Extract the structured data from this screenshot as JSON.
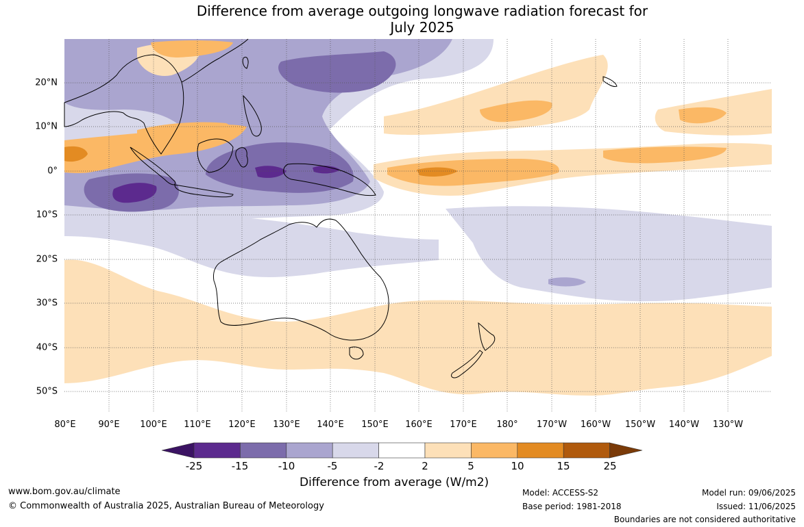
{
  "title": {
    "line1": "Difference from average outgoing longwave radiation forecast for",
    "line2": "July 2025"
  },
  "map": {
    "lon_labels": [
      "80°E",
      "90°E",
      "100°E",
      "110°E",
      "120°E",
      "130°E",
      "140°E",
      "150°E",
      "160°E",
      "170°E",
      "180°",
      "170°W",
      "160°W",
      "150°W",
      "140°W",
      "130°W"
    ],
    "lat_labels": [
      "20°N",
      "10°N",
      "0°",
      "10°S",
      "20°S",
      "30°S",
      "40°S",
      "50°S"
    ],
    "lon_range": [
      "80°E",
      "130°W"
    ],
    "lat_range": [
      "30°N",
      "55°S"
    ],
    "gridlines": "dotted",
    "anomaly_regions": [
      {
        "name": "western-pacific-maritime-continent",
        "sign": "negative",
        "level": "-15 to -25"
      },
      {
        "name": "eastern-indian-ocean",
        "sign": "negative",
        "level": "-15 to -25"
      },
      {
        "name": "equatorial-central-pacific",
        "sign": "positive",
        "level": "10 to 15"
      },
      {
        "name": "north-pacific-itcz-band",
        "sign": "positive",
        "level": "5 to 10"
      },
      {
        "name": "southern-ocean-band",
        "sign": "positive",
        "level": "2 to 5"
      },
      {
        "name": "south-pacific-convergence-zone",
        "sign": "negative",
        "level": "-2 to -10"
      }
    ]
  },
  "colorbar": {
    "ticks": [
      "-25",
      "-15",
      "-10",
      "-5",
      "-2",
      "2",
      "5",
      "10",
      "15",
      "25"
    ],
    "colors": [
      "#3b1363",
      "#5c2a8e",
      "#7c6cab",
      "#aaa5cf",
      "#d8d8ea",
      "#ffffff",
      "#fde0b8",
      "#fbb865",
      "#e38b22",
      "#b05a0d",
      "#7a3a08"
    ],
    "label": "Difference from average (W/m2)"
  },
  "footer": {
    "website": "www.bom.gov.au/climate",
    "copyright": "© Commonwealth of Australia 2025, Australian Bureau of Meteorology",
    "model": "Model: ACCESS-S2",
    "base_period": "Base period: 1981-2018",
    "model_run": "Model run: 09/06/2025",
    "issued": "Issued: 11/06/2025",
    "disclaimer": "Boundaries are not considered authoritative"
  }
}
